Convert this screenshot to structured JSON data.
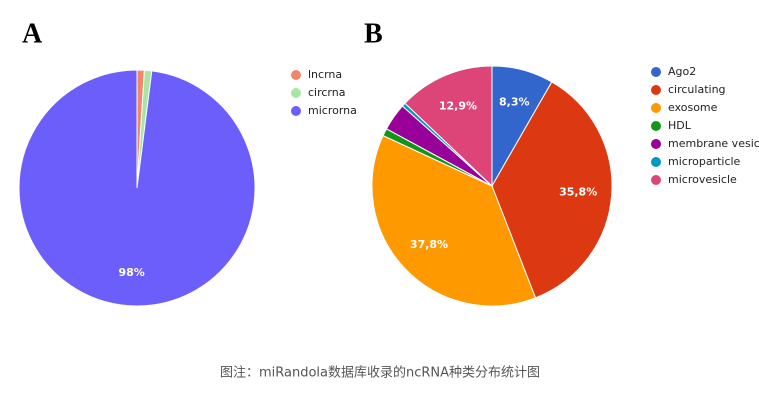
{
  "chart_data": [
    {
      "type": "pie",
      "title": "A",
      "categories": [
        "lncrna",
        "circrna",
        "microrna"
      ],
      "values": [
        1,
        1,
        98
      ],
      "value_labels": [
        null,
        null,
        "98%"
      ],
      "colors": [
        "#f0876a",
        "#a8e6a3",
        "#6c5efb"
      ]
    },
    {
      "type": "pie",
      "title": "B",
      "categories": [
        "Ago2",
        "circulating",
        "exosome",
        "HDL",
        "membrane vesicle",
        "microparticle",
        "microvesicle"
      ],
      "values": [
        8.3,
        35.8,
        37.8,
        1.0,
        3.7,
        0.5,
        12.9
      ],
      "value_labels": [
        "8,3%",
        "35,8%",
        "37,8%",
        null,
        null,
        null,
        "12,9%"
      ],
      "colors": [
        "#3366cc",
        "#dc3912",
        "#ff9900",
        "#109618",
        "#990099",
        "#0099c6",
        "#dd4477"
      ]
    }
  ],
  "caption": "图注：miRandola数据库收录的ncRNA种类分布统计图"
}
